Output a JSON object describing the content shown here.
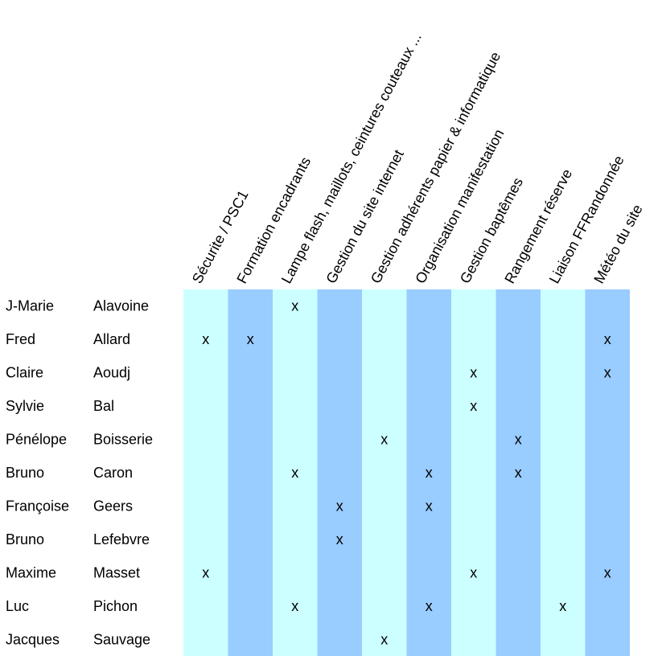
{
  "table": {
    "columns": [
      "Sécurite / PSC1",
      "Formation encadrants",
      "Lampe flash, maillots, ceintures couteaux ...",
      "Gestion du site internet",
      "Gestion adhérents papier & informatique",
      "Organisation manifestation",
      "Gestion baptêmes",
      "Rangement réserve",
      "Liaison FFRandonnée",
      "Météo du site"
    ],
    "rows": [
      {
        "first": "J-Marie",
        "last": "Alavoine",
        "marks": [
          null,
          null,
          "x",
          null,
          null,
          null,
          null,
          null,
          null,
          null
        ]
      },
      {
        "first": "Fred",
        "last": "Allard",
        "marks": [
          "x",
          "x",
          null,
          null,
          null,
          null,
          null,
          null,
          null,
          "x"
        ]
      },
      {
        "first": "Claire",
        "last": "Aoudj",
        "marks": [
          null,
          null,
          null,
          null,
          null,
          null,
          "x",
          null,
          null,
          "x"
        ]
      },
      {
        "first": "Sylvie",
        "last": "Bal",
        "marks": [
          null,
          null,
          null,
          null,
          null,
          null,
          "x",
          null,
          null,
          null
        ]
      },
      {
        "first": "Pénélope",
        "last": "Boisserie",
        "marks": [
          null,
          null,
          null,
          null,
          "x",
          null,
          null,
          "x",
          null,
          null
        ]
      },
      {
        "first": "Bruno",
        "last": "Caron",
        "marks": [
          null,
          null,
          "x",
          null,
          null,
          "x",
          null,
          "x",
          null,
          null
        ]
      },
      {
        "first": "Françoise",
        "last": "Geers",
        "marks": [
          null,
          null,
          null,
          "x",
          null,
          "x",
          null,
          null,
          null,
          null
        ]
      },
      {
        "first": "Bruno",
        "last": "Lefebvre",
        "marks": [
          null,
          null,
          null,
          "x",
          null,
          null,
          null,
          null,
          null,
          null
        ]
      },
      {
        "first": "Maxime",
        "last": "Masset",
        "marks": [
          "x",
          null,
          null,
          null,
          null,
          null,
          "x",
          null,
          null,
          "x"
        ]
      },
      {
        "first": "Luc",
        "last": "Pichon",
        "marks": [
          null,
          null,
          "x",
          null,
          null,
          "x",
          null,
          null,
          "x",
          null
        ]
      },
      {
        "first": "Jacques",
        "last": "Sauvage",
        "marks": [
          null,
          null,
          null,
          null,
          "x",
          null,
          null,
          null,
          null,
          null
        ]
      }
    ]
  }
}
